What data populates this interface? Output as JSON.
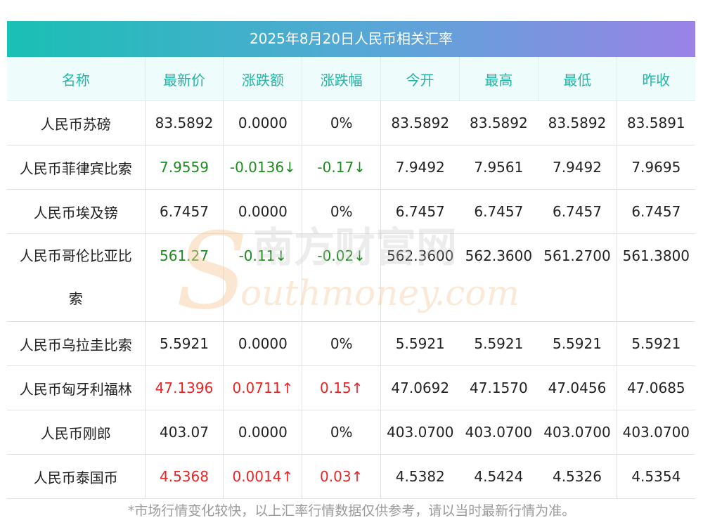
{
  "title": "2025年8月20日人民币相关汇率",
  "headers": [
    "名称",
    "最新价",
    "涨跌额",
    "涨跌幅",
    "今开",
    "最高",
    "最低",
    "昨收"
  ],
  "rows": [
    {
      "name": "人民币苏磅",
      "latest": "83.5892",
      "change": "0.0000",
      "pct": "0%",
      "open": "83.5892",
      "high": "83.5892",
      "low": "83.5892",
      "prev": "83.5891",
      "trend": "flat"
    },
    {
      "name": "人民币菲律宾比索",
      "latest": "7.9559",
      "change": "-0.0136↓",
      "pct": "-0.17↓",
      "open": "7.9492",
      "high": "7.9561",
      "low": "7.9492",
      "prev": "7.9695",
      "trend": "down"
    },
    {
      "name": "人民币埃及镑",
      "latest": "6.7457",
      "change": "0.0000",
      "pct": "0%",
      "open": "6.7457",
      "high": "6.7457",
      "low": "6.7457",
      "prev": "6.7457",
      "trend": "flat"
    },
    {
      "name": "人民币哥伦比亚比",
      "name2": "索",
      "latest": "561.27",
      "change": "-0.11↓",
      "pct": "-0.02↓",
      "open": "562.3600",
      "high": "562.3600",
      "low": "561.2700",
      "prev": "561.3800",
      "trend": "down"
    },
    {
      "name": "人民币乌拉圭比索",
      "latest": "5.5921",
      "change": "0.0000",
      "pct": "0%",
      "open": "5.5921",
      "high": "5.5921",
      "low": "5.5921",
      "prev": "5.5921",
      "trend": "flat"
    },
    {
      "name": "人民币匈牙利福林",
      "latest": "47.1396",
      "change": "0.0711↑",
      "pct": "0.15↑",
      "open": "47.0692",
      "high": "47.1570",
      "low": "47.0456",
      "prev": "47.0685",
      "trend": "up"
    },
    {
      "name": "人民币刚郎",
      "latest": "403.07",
      "change": "0.0000",
      "pct": "0%",
      "open": "403.0700",
      "high": "403.0700",
      "low": "403.0700",
      "prev": "403.0700",
      "trend": "flat"
    },
    {
      "name": "人民币泰国币",
      "latest": "4.5368",
      "change": "0.0014↑",
      "pct": "0.03↑",
      "open": "4.5382",
      "high": "4.5424",
      "low": "4.5326",
      "prev": "4.5354",
      "trend": "up"
    }
  ],
  "watermark": {
    "cn": "南方财富网",
    "en": "outhmoney.com",
    "s_letter": "S"
  },
  "footer": "*市场行情变化较快，以上汇率行情数据仅供参考，请以当时最新行情为准。",
  "colors": {
    "up": "#e82424",
    "down": "#1f8a1f",
    "header_text": "#27b3a3",
    "title_start": "#19c0b4",
    "title_end": "#9a83e6"
  }
}
